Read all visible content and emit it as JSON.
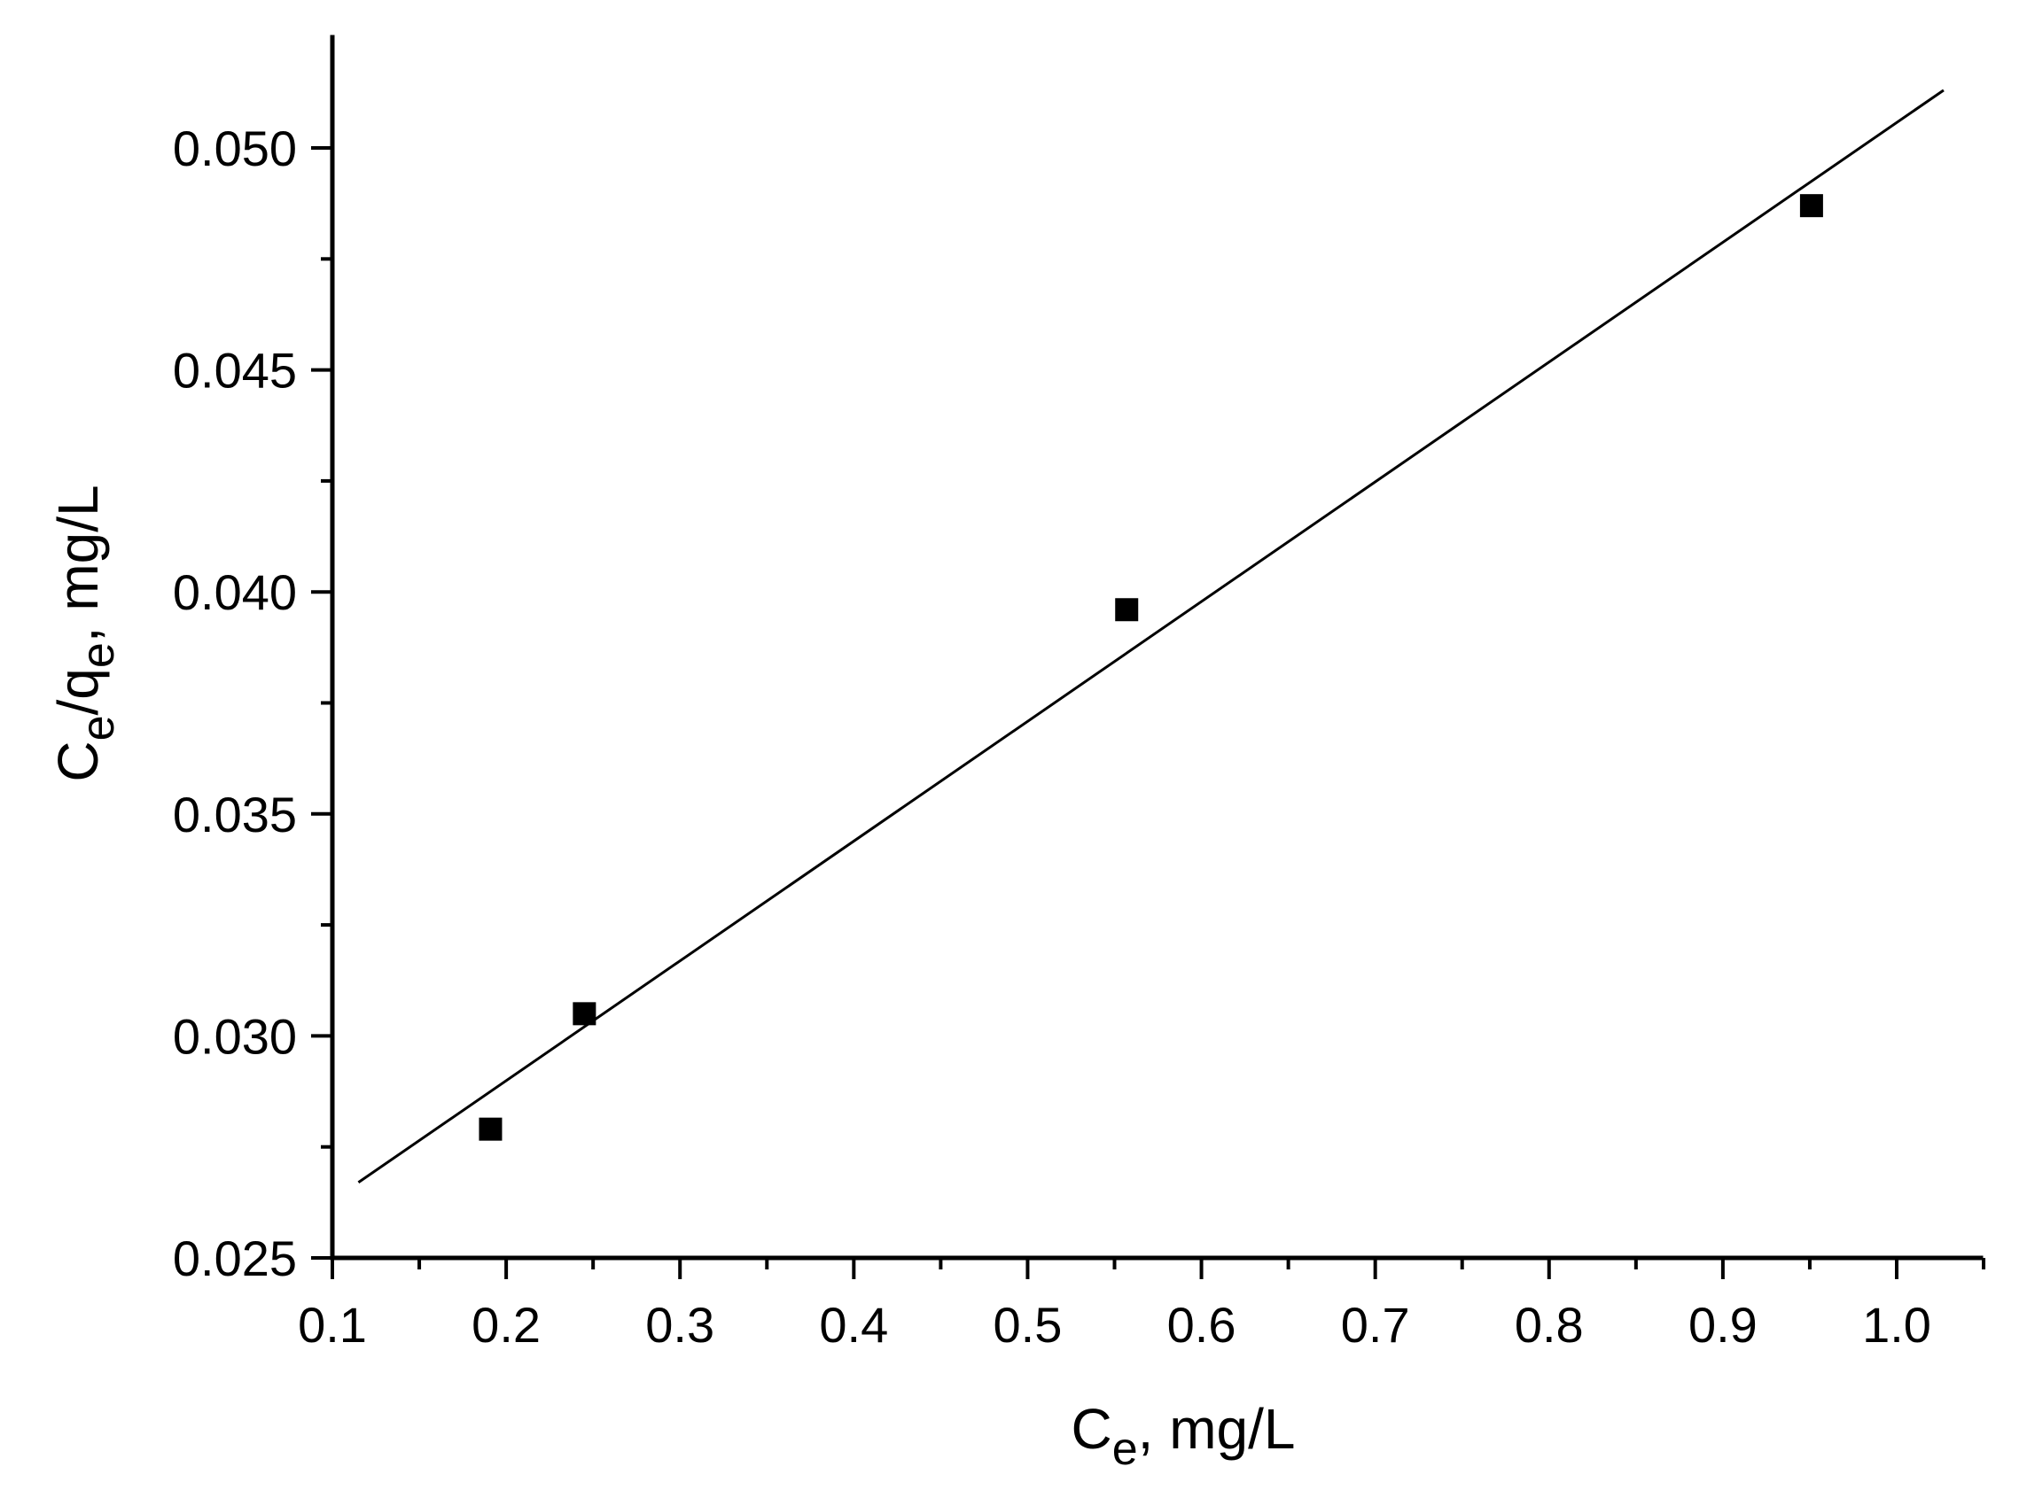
{
  "chart_data": {
    "type": "scatter",
    "xlabel": {
      "main": "C",
      "sub": "e",
      "rest": ", mg/L"
    },
    "ylabel": {
      "main1": "C",
      "sub1": "e",
      "mid": "/q",
      "sub2": "e",
      "rest": ", mg/L"
    },
    "xlim": [
      0.1,
      1.05
    ],
    "ylim": [
      0.025,
      0.0525
    ],
    "xticks": [
      "0.1",
      "0.2",
      "0.3",
      "0.4",
      "0.5",
      "0.6",
      "0.7",
      "0.8",
      "0.9",
      "1.0"
    ],
    "yticks": [
      "0.025",
      "0.030",
      "0.035",
      "0.040",
      "0.045",
      "0.050"
    ],
    "grid": false,
    "series": [
      {
        "x": [
          0.191,
          0.245,
          0.557,
          0.951
        ],
        "y": [
          0.0279,
          0.0305,
          0.0396,
          0.0487
        ],
        "marker": "square",
        "color": "#000000"
      }
    ],
    "fit_line": {
      "x": [
        0.115,
        1.027
      ],
      "y": [
        0.0267,
        0.0513
      ],
      "color": "#000000"
    }
  }
}
